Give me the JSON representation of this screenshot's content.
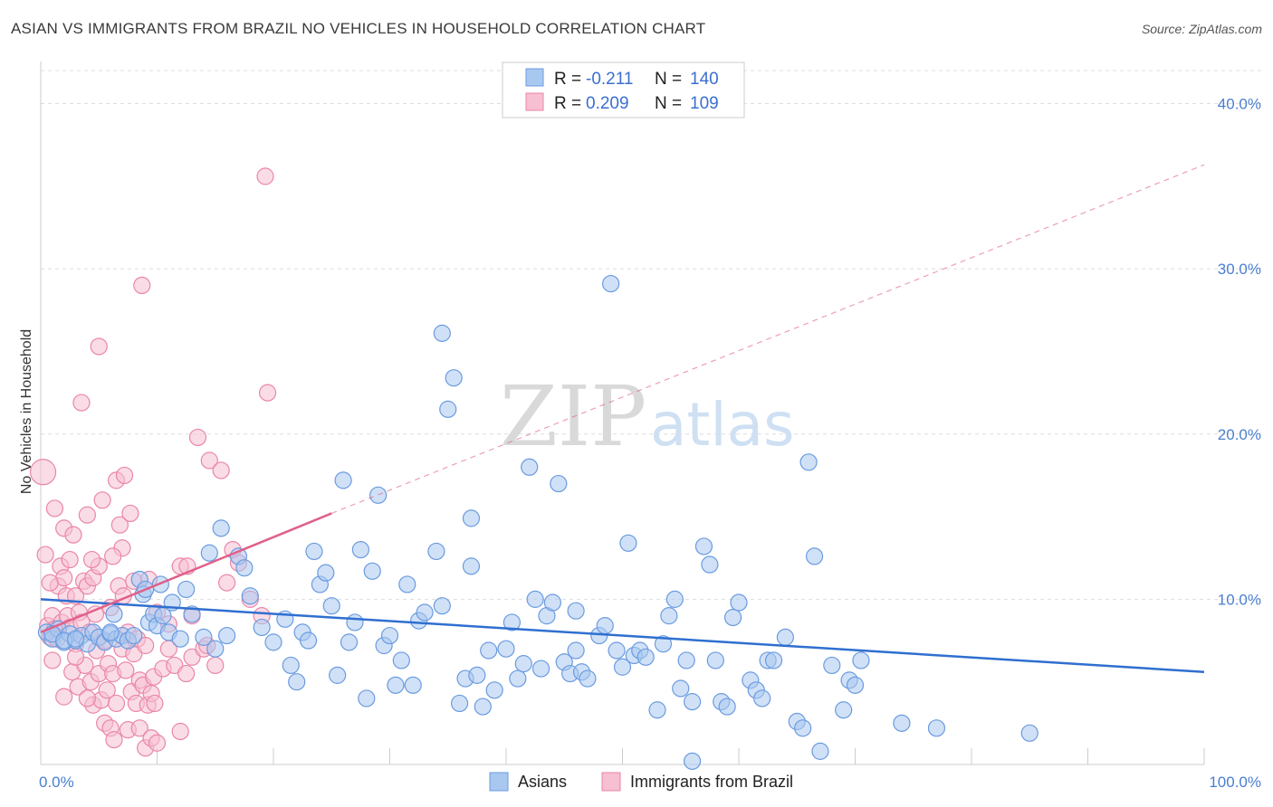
{
  "header": {
    "title": "ASIAN VS IMMIGRANTS FROM BRAZIL NO VEHICLES IN HOUSEHOLD CORRELATION CHART",
    "source": "Source: ZipAtlas.com"
  },
  "watermark": {
    "zip": "ZIP",
    "atlas": "atlas"
  },
  "legend_box": {
    "rows": [
      {
        "r_label": "R =",
        "r_value": "-0.211",
        "n_label": "N =",
        "n_value": "140",
        "color": "#a9c8f0",
        "stroke": "#6a9be0"
      },
      {
        "r_label": "R =",
        "r_value": "0.209",
        "n_label": "N =",
        "n_value": "109",
        "color": "#f6bfd2",
        "stroke": "#ea86a7"
      }
    ]
  },
  "colors": {
    "asian_fill": "#a9c8f0",
    "asian_stroke": "#6a9be0",
    "asian_line": "#2f6fd0",
    "brazil_fill": "#f6bfd2",
    "brazil_stroke": "#ea86a7",
    "brazil_line": "#e0608a",
    "grid": "#dddddd",
    "tick_text": "#4a7fd0"
  },
  "chart_data": {
    "type": "scatter",
    "title": "ASIAN VS IMMIGRANTS FROM BRAZIL NO VEHICLES IN HOUSEHOLD CORRELATION CHART",
    "ylabel": "No Vehicles in Household",
    "xlim": [
      0,
      100
    ],
    "ylim": [
      0,
      42
    ],
    "y_ticks": [
      10,
      20,
      30,
      40
    ],
    "y_tick_labels": [
      "10.0%",
      "20.0%",
      "30.0%",
      "40.0%"
    ],
    "x_tick_labels": [
      "0.0%",
      "100.0%"
    ],
    "grid": "horizontal dashed",
    "legend_position": "top-center",
    "series": [
      {
        "name": "Asians",
        "R": -0.211,
        "N": 140,
        "trend": {
          "x": [
            0,
            100
          ],
          "y": [
            10.0,
            5.6
          ]
        },
        "points": [
          [
            0.5,
            8.0
          ],
          [
            1,
            7.6
          ],
          [
            1.5,
            8.2
          ],
          [
            2,
            7.4
          ],
          [
            2.5,
            7.9
          ],
          [
            3,
            7.5
          ],
          [
            3.5,
            7.8
          ],
          [
            4,
            7.3
          ],
          [
            4.5,
            8.0
          ],
          [
            5,
            7.7
          ],
          [
            5.5,
            7.4
          ],
          [
            6,
            7.9
          ],
          [
            6.5,
            7.6
          ],
          [
            7,
            7.8
          ],
          [
            7.5,
            7.5
          ],
          [
            8,
            7.8
          ],
          [
            1,
            7.9
          ],
          [
            2,
            7.5
          ],
          [
            3,
            7.6
          ],
          [
            6,
            8.0
          ],
          [
            6.3,
            9.1
          ],
          [
            8.5,
            11.2
          ],
          [
            8.8,
            10.3
          ],
          [
            9,
            10.6
          ],
          [
            9.3,
            8.6
          ],
          [
            9.7,
            9.1
          ],
          [
            10,
            8.4
          ],
          [
            10.3,
            10.9
          ],
          [
            10.5,
            9.0
          ],
          [
            11,
            8.0
          ],
          [
            11.3,
            9.8
          ],
          [
            12,
            7.6
          ],
          [
            12.5,
            10.6
          ],
          [
            13,
            9.1
          ],
          [
            14,
            7.7
          ],
          [
            14.5,
            12.8
          ],
          [
            15,
            7.0
          ],
          [
            15.5,
            14.3
          ],
          [
            16,
            7.8
          ],
          [
            17,
            12.6
          ],
          [
            17.5,
            11.9
          ],
          [
            18,
            10.2
          ],
          [
            19,
            8.3
          ],
          [
            20,
            7.4
          ],
          [
            21,
            8.8
          ],
          [
            21.5,
            6.0
          ],
          [
            22,
            5.0
          ],
          [
            22.5,
            8.0
          ],
          [
            23,
            7.5
          ],
          [
            23.5,
            12.9
          ],
          [
            24,
            10.9
          ],
          [
            24.5,
            11.6
          ],
          [
            25,
            9.6
          ],
          [
            25.5,
            5.4
          ],
          [
            26,
            17.2
          ],
          [
            26.5,
            7.4
          ],
          [
            27,
            8.6
          ],
          [
            27.5,
            13.0
          ],
          [
            28,
            4.0
          ],
          [
            28.5,
            11.7
          ],
          [
            29,
            16.3
          ],
          [
            29.5,
            7.2
          ],
          [
            30,
            7.8
          ],
          [
            30.5,
            4.8
          ],
          [
            31,
            6.3
          ],
          [
            31.5,
            10.9
          ],
          [
            32,
            4.8
          ],
          [
            32.5,
            8.7
          ],
          [
            33,
            9.2
          ],
          [
            34,
            12.9
          ],
          [
            34.5,
            9.6
          ],
          [
            35,
            21.5
          ],
          [
            35.5,
            23.4
          ],
          [
            36,
            3.7
          ],
          [
            36.5,
            5.2
          ],
          [
            37,
            14.9
          ],
          [
            37.5,
            5.4
          ],
          [
            38,
            3.5
          ],
          [
            38.5,
            6.9
          ],
          [
            39,
            4.5
          ],
          [
            40,
            7.0
          ],
          [
            40.5,
            8.6
          ],
          [
            41,
            5.2
          ],
          [
            41.5,
            6.1
          ],
          [
            42,
            18.0
          ],
          [
            42.5,
            10.0
          ],
          [
            43,
            5.8
          ],
          [
            43.5,
            9.0
          ],
          [
            44,
            9.8
          ],
          [
            44.5,
            17.0
          ],
          [
            45,
            6.2
          ],
          [
            45.5,
            5.5
          ],
          [
            46,
            9.3
          ],
          [
            46.5,
            5.6
          ],
          [
            47,
            5.2
          ],
          [
            48,
            7.8
          ],
          [
            48.5,
            8.4
          ],
          [
            49,
            29.1
          ],
          [
            49.5,
            6.9
          ],
          [
            50,
            5.9
          ],
          [
            50.5,
            13.4
          ],
          [
            51,
            6.6
          ],
          [
            51.5,
            6.9
          ],
          [
            52,
            6.5
          ],
          [
            53,
            3.3
          ],
          [
            53.5,
            7.3
          ],
          [
            54,
            9.0
          ],
          [
            54.5,
            10.0
          ],
          [
            55,
            4.6
          ],
          [
            55.5,
            6.3
          ],
          [
            56,
            3.8
          ],
          [
            57,
            13.2
          ],
          [
            57.5,
            12.1
          ],
          [
            58,
            6.3
          ],
          [
            58.5,
            3.8
          ],
          [
            59,
            3.5
          ],
          [
            59.5,
            8.9
          ],
          [
            60,
            9.8
          ],
          [
            61,
            5.1
          ],
          [
            61.5,
            4.5
          ],
          [
            62,
            4.0
          ],
          [
            62.5,
            6.3
          ],
          [
            63,
            6.3
          ],
          [
            64,
            7.7
          ],
          [
            65,
            2.6
          ],
          [
            65.5,
            2.2
          ],
          [
            66,
            18.3
          ],
          [
            66.5,
            12.6
          ],
          [
            67,
            0.8
          ],
          [
            68,
            6.0
          ],
          [
            69,
            3.3
          ],
          [
            69.5,
            5.1
          ],
          [
            70,
            4.8
          ],
          [
            70.5,
            6.3
          ],
          [
            74,
            2.5
          ],
          [
            77,
            2.2
          ],
          [
            85,
            1.9
          ],
          [
            56,
            0.2
          ],
          [
            46,
            6.9
          ],
          [
            37,
            12.0
          ],
          [
            34.5,
            26.1
          ]
        ]
      },
      {
        "name": "Immigrants from Brazil",
        "R": 0.209,
        "N": 109,
        "trend": {
          "x": [
            0,
            25
          ],
          "y": [
            8.0,
            15.2
          ],
          "extended_to": [
            100,
            36.3
          ]
        },
        "points": [
          [
            0.2,
            17.7
          ],
          [
            0.4,
            12.7
          ],
          [
            0.6,
            8.4
          ],
          [
            0.8,
            7.7
          ],
          [
            1,
            9.0
          ],
          [
            1.2,
            8.2
          ],
          [
            1.4,
            7.6
          ],
          [
            1.5,
            10.8
          ],
          [
            1.7,
            12.0
          ],
          [
            1.8,
            8.6
          ],
          [
            2,
            14.3
          ],
          [
            2,
            11.3
          ],
          [
            2.2,
            10.2
          ],
          [
            2.3,
            9.0
          ],
          [
            2.5,
            12.4
          ],
          [
            2.5,
            8.3
          ],
          [
            2.7,
            5.6
          ],
          [
            2.8,
            13.9
          ],
          [
            3,
            7.3
          ],
          [
            3,
            10.2
          ],
          [
            3.2,
            4.7
          ],
          [
            3.3,
            9.2
          ],
          [
            3.5,
            21.9
          ],
          [
            3.5,
            8.6
          ],
          [
            3.7,
            11.1
          ],
          [
            3.8,
            6.0
          ],
          [
            4,
            15.1
          ],
          [
            4,
            10.8
          ],
          [
            4.2,
            8.0
          ],
          [
            4.3,
            5.0
          ],
          [
            4.5,
            11.3
          ],
          [
            4.5,
            3.6
          ],
          [
            4.7,
            9.1
          ],
          [
            4.8,
            6.9
          ],
          [
            5,
            25.3
          ],
          [
            5,
            12.0
          ],
          [
            5,
            5.5
          ],
          [
            5.2,
            3.9
          ],
          [
            5.3,
            16.0
          ],
          [
            5.5,
            7.5
          ],
          [
            5.5,
            2.5
          ],
          [
            5.7,
            4.5
          ],
          [
            5.8,
            6.1
          ],
          [
            6,
            9.5
          ],
          [
            6,
            2.2
          ],
          [
            6.2,
            5.5
          ],
          [
            6.3,
            1.5
          ],
          [
            6.5,
            17.2
          ],
          [
            6.5,
            3.7
          ],
          [
            6.7,
            10.8
          ],
          [
            6.8,
            14.5
          ],
          [
            7,
            13.1
          ],
          [
            7,
            7.0
          ],
          [
            7.2,
            17.5
          ],
          [
            7.3,
            5.7
          ],
          [
            7.5,
            8.0
          ],
          [
            7.5,
            2.1
          ],
          [
            7.7,
            15.2
          ],
          [
            7.8,
            4.4
          ],
          [
            8,
            6.7
          ],
          [
            8,
            11.1
          ],
          [
            8.2,
            3.7
          ],
          [
            8.3,
            7.6
          ],
          [
            8.5,
            5.1
          ],
          [
            8.5,
            2.2
          ],
          [
            8.7,
            29.0
          ],
          [
            8.8,
            4.8
          ],
          [
            9,
            7.2
          ],
          [
            9,
            1.0
          ],
          [
            9.2,
            3.6
          ],
          [
            9.3,
            11.2
          ],
          [
            9.5,
            4.3
          ],
          [
            9.5,
            1.6
          ],
          [
            9.7,
            5.3
          ],
          [
            9.8,
            3.7
          ],
          [
            10,
            9.2
          ],
          [
            10,
            1.3
          ],
          [
            10.5,
            5.8
          ],
          [
            11,
            7.0
          ],
          [
            11,
            8.5
          ],
          [
            11.5,
            6.0
          ],
          [
            12,
            12.0
          ],
          [
            12,
            2.0
          ],
          [
            12.5,
            5.5
          ],
          [
            13,
            9.0
          ],
          [
            13,
            6.5
          ],
          [
            13.5,
            19.8
          ],
          [
            14,
            7.0
          ],
          [
            14.5,
            18.4
          ],
          [
            15,
            6.0
          ],
          [
            15.5,
            17.8
          ],
          [
            16,
            11.0
          ],
          [
            16.5,
            13.0
          ],
          [
            17,
            12.2
          ],
          [
            18,
            10.0
          ],
          [
            19,
            9.0
          ],
          [
            19.5,
            22.5
          ],
          [
            19.3,
            35.6
          ],
          [
            1,
            6.3
          ],
          [
            2,
            4.1
          ],
          [
            3,
            6.5
          ],
          [
            4,
            4.0
          ],
          [
            1.2,
            15.5
          ],
          [
            0.8,
            11.0
          ],
          [
            12.6,
            12.0
          ],
          [
            14.3,
            7.2
          ],
          [
            6.2,
            12.6
          ],
          [
            4.4,
            12.4
          ],
          [
            7.1,
            10.2
          ]
        ]
      }
    ]
  },
  "bottom_legend": {
    "items": [
      {
        "label": "Asians",
        "color": "#a9c8f0",
        "stroke": "#6a9be0"
      },
      {
        "label": "Immigrants from Brazil",
        "color": "#f6bfd2",
        "stroke": "#ea86a7"
      }
    ]
  }
}
